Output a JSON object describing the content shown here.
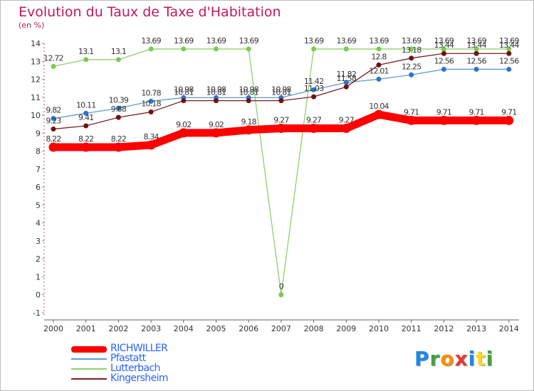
{
  "header": {
    "title": "Evolution du Taux de Taxe d'Habitation",
    "subtitle": "(en %)"
  },
  "chart_data": {
    "type": "line",
    "title": "Evolution du Taux de Taxe d'Habitation",
    "ylabel": "(en %)",
    "xlabel": "",
    "ylim": [
      -1,
      14
    ],
    "yticks": [
      -1,
      0,
      1,
      2,
      3,
      4,
      5,
      6,
      7,
      8,
      9,
      10,
      11,
      12,
      13,
      14
    ],
    "categories": [
      "2000",
      "2001",
      "2002",
      "2003",
      "2004",
      "2005",
      "2006",
      "2007",
      "2008",
      "2009",
      "2010",
      "2011",
      "2012",
      "2013",
      "2014"
    ],
    "grid": false,
    "legend_position": "bottom-left",
    "series": [
      {
        "name": "Lutterbach",
        "color": "#8fd16a",
        "values": [
          12.72,
          13.1,
          13.1,
          13.69,
          13.69,
          13.69,
          13.69,
          0,
          13.69,
          13.69,
          13.69,
          13.69,
          13.69,
          13.69,
          13.69
        ],
        "labels": [
          "12.72",
          "13.1",
          "13.1",
          "13.69",
          "13.69",
          "13.69",
          "13.69",
          "0",
          "13.69",
          "13.69",
          "13.69",
          "13.69",
          "13.69",
          "13.69",
          "13.69"
        ]
      },
      {
        "name": "Pfastatt",
        "color": "#5b9bd5",
        "values": [
          9.82,
          10.11,
          10.39,
          10.78,
          10.98,
          10.98,
          10.98,
          10.98,
          11.42,
          11.82,
          12.01,
          12.25,
          12.56,
          12.56,
          12.56
        ],
        "labels": [
          "9.82",
          "10.11",
          "10.39",
          "10.78",
          "10.98",
          "10.98",
          "10.98",
          "10.98",
          "11.42",
          "11.82",
          "12.01",
          "12.25",
          "12.56",
          "12.56",
          "12.56"
        ]
      },
      {
        "name": "Kingersheim",
        "color": "#7a1f1f",
        "values": [
          9.23,
          9.41,
          9.88,
          10.18,
          10.81,
          10.81,
          10.81,
          10.81,
          11.03,
          11.58,
          12.8,
          13.18,
          13.44,
          13.44,
          13.44
        ],
        "labels": [
          "9.23",
          "9.41",
          "9.88",
          "10.18",
          "10.81",
          "10.81",
          "10.81",
          "10.81",
          "11.03",
          "11.58",
          "12.8",
          "13.18",
          "13.44",
          "13.44",
          "13.44"
        ]
      },
      {
        "name": "RICHWILLER",
        "color": "#ff0000",
        "values": [
          8.22,
          8.22,
          8.22,
          8.34,
          9.02,
          9.02,
          9.18,
          9.27,
          9.27,
          9.27,
          10.04,
          9.71,
          9.71,
          9.71,
          9.71
        ],
        "labels": [
          "8.22",
          "8.22",
          "8.22",
          "8.34",
          "9.02",
          "9.02",
          "9.18",
          "9.27",
          "9.27",
          "9.27",
          "10.04",
          "9.71",
          "9.71",
          "9.71",
          "9.71"
        ]
      }
    ]
  },
  "legend": {
    "items": [
      {
        "label": "RICHWILLER",
        "color": "#ff0000"
      },
      {
        "label": "Pfastatt",
        "color": "#5b9bd5"
      },
      {
        "label": "Lutterbach",
        "color": "#8fd16a"
      },
      {
        "label": "Kingersheim",
        "color": "#7a1f1f"
      }
    ]
  },
  "logo": {
    "letters": [
      {
        "ch": "P",
        "color": "#1e88e5"
      },
      {
        "ch": "r",
        "color": "#43a047"
      },
      {
        "ch": "o",
        "color": "#fb8c00"
      },
      {
        "ch": "x",
        "color": "#e53935"
      },
      {
        "ch": "i",
        "color": "#1e88e5"
      },
      {
        "ch": "t",
        "color": "#fdd835"
      },
      {
        "ch": "i",
        "color": "#43a047"
      }
    ]
  }
}
